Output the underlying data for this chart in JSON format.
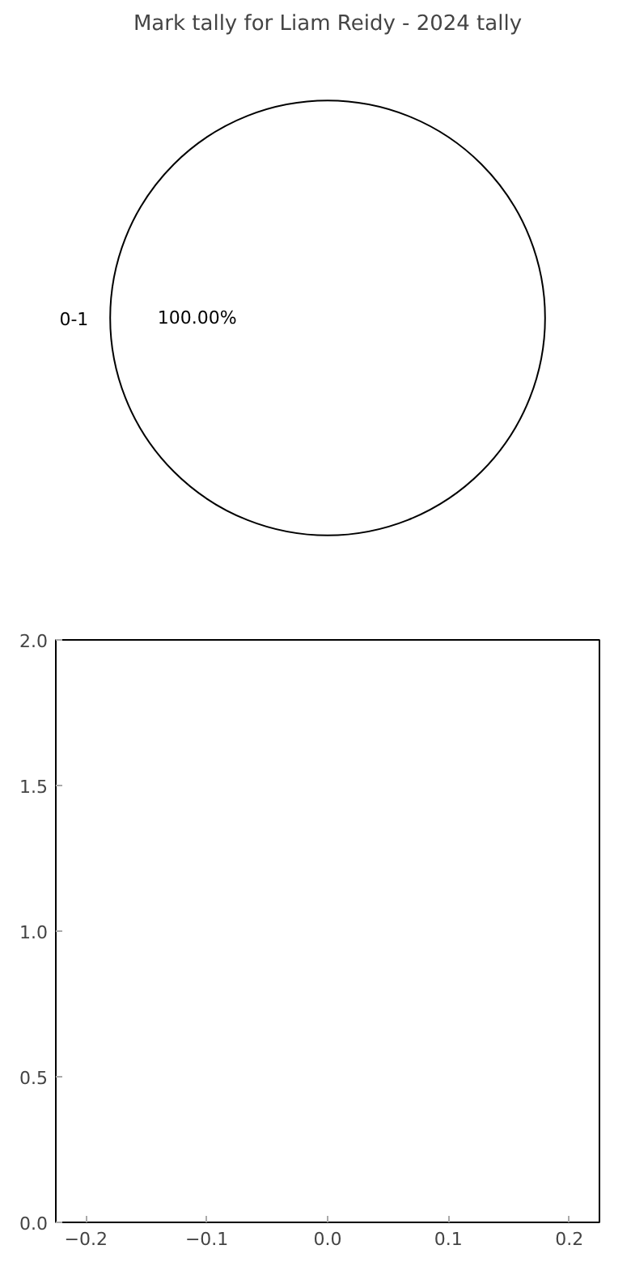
{
  "chart_data": [
    {
      "type": "pie",
      "title": "Mark tally for Liam Reidy - 2024 tally",
      "categories": [
        "0-1"
      ],
      "values": [
        100
      ],
      "colors": [
        "#ffffff"
      ],
      "value_labels": [
        "100.00%"
      ]
    },
    {
      "type": "scatter",
      "xlim": [
        -0.225,
        0.225
      ],
      "ylim": [
        0,
        2
      ],
      "xticks": [
        {
          "value": -0.2,
          "label": "−0.2"
        },
        {
          "value": -0.1,
          "label": "−0.1"
        },
        {
          "value": 0,
          "label": "0.0"
        },
        {
          "value": 0.1,
          "label": "0.1"
        },
        {
          "value": 0.2,
          "label": "0.2"
        }
      ],
      "yticks": [
        {
          "value": 0,
          "label": "0.0"
        },
        {
          "value": 0.5,
          "label": "0.5"
        },
        {
          "value": 1,
          "label": "1.0"
        },
        {
          "value": 1.5,
          "label": "1.5"
        },
        {
          "value": 2,
          "label": "2.0"
        }
      ]
    }
  ]
}
